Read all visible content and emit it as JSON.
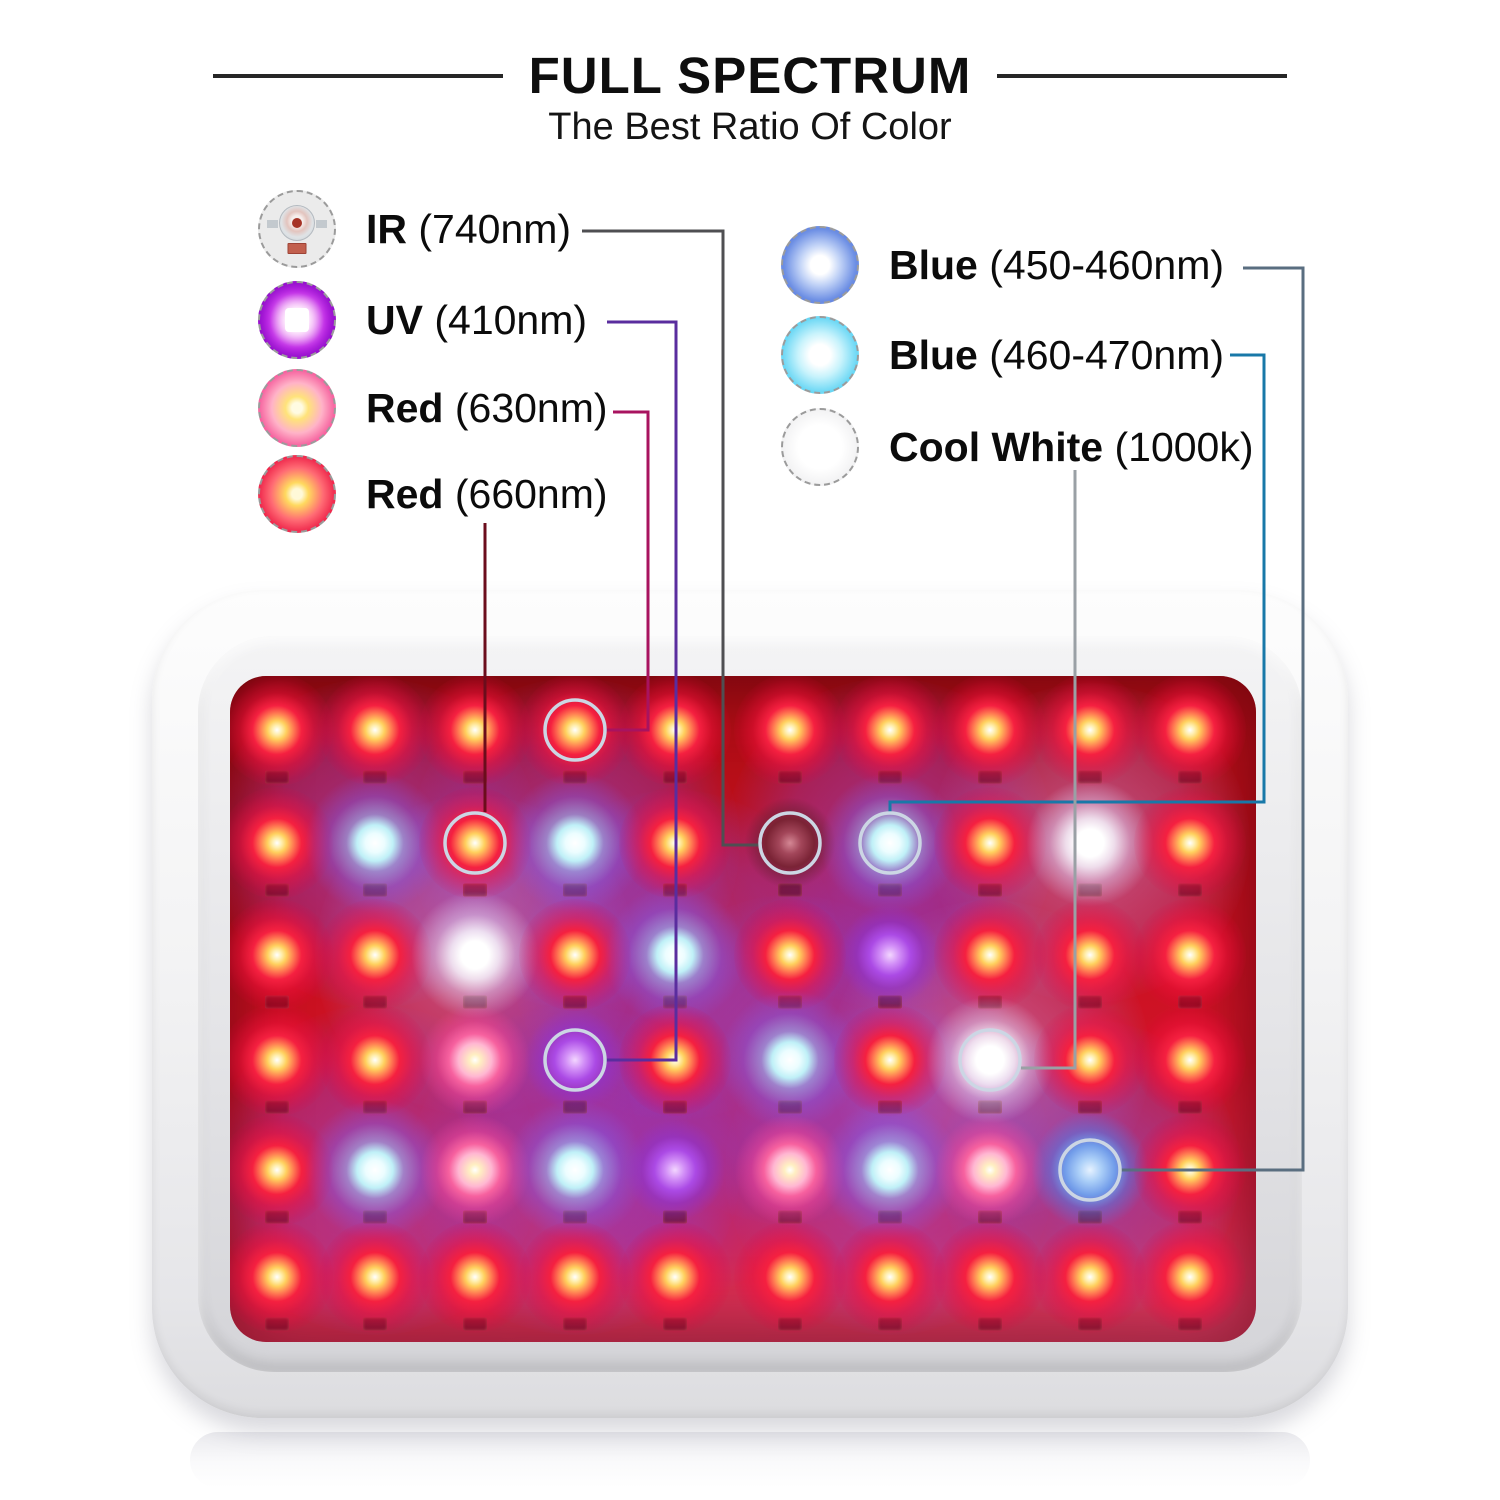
{
  "header": {
    "title": "FULL SPECTRUM",
    "subtitle": "The Best Ratio Of Color"
  },
  "legend_left": [
    {
      "id": "ir",
      "label": "IR",
      "wavelength": "(740nm)",
      "swatch": "ir-unlit-led",
      "line_color": "#4f4f52"
    },
    {
      "id": "uv",
      "label": "UV",
      "wavelength": "(410nm)",
      "swatch": "uv-purple-led",
      "line_color": "#5a2d9e"
    },
    {
      "id": "red630",
      "label": "Red",
      "wavelength": "(630nm)",
      "swatch": "red-630-led",
      "line_color": "#a8135f"
    },
    {
      "id": "red660",
      "label": "Red",
      "wavelength": "(660nm)",
      "swatch": "red-660-led",
      "line_color": "#6b0d1c"
    }
  ],
  "legend_right": [
    {
      "id": "blue450",
      "label": "Blue",
      "wavelength": "(450-460nm)",
      "swatch": "royal-blue-led",
      "line_color": "#5a6e80"
    },
    {
      "id": "blue470",
      "label": "Blue",
      "wavelength": "(460-470nm)",
      "swatch": "cyan-blue-led",
      "line_color": "#1878a8"
    },
    {
      "id": "coolwhite",
      "label": "Cool White",
      "wavelength": "(1000k)",
      "swatch": "cool-white-led",
      "line_color": "#9aa0a5"
    }
  ],
  "panel": {
    "rows": 6,
    "cols": 10,
    "led_types": {
      "R": "red",
      "C": "cyan-blue",
      "W": "cool-white",
      "P": "pink-red",
      "U": "uv-purple",
      "I": "ir-dark",
      "B": "royal-blue"
    },
    "grid": [
      [
        "R",
        "R",
        "R",
        "R",
        "R",
        "R",
        "R",
        "R",
        "R",
        "R"
      ],
      [
        "R",
        "C",
        "R",
        "C",
        "R",
        "I",
        "C",
        "R",
        "W",
        "R"
      ],
      [
        "R",
        "R",
        "W",
        "R",
        "C",
        "R",
        "U",
        "R",
        "R",
        "R"
      ],
      [
        "R",
        "R",
        "P",
        "U",
        "R",
        "C",
        "R",
        "W",
        "R",
        "R"
      ],
      [
        "R",
        "C",
        "P",
        "C",
        "U",
        "P",
        "C",
        "P",
        "B",
        "R"
      ],
      [
        "R",
        "R",
        "R",
        "R",
        "R",
        "R",
        "R",
        "R",
        "R",
        "R"
      ]
    ],
    "callouts": [
      {
        "legend": "red630",
        "row": 1,
        "col": 4
      },
      {
        "legend": "red660",
        "row": 2,
        "col": 3
      },
      {
        "legend": "ir",
        "row": 2,
        "col": 6
      },
      {
        "legend": "blue470",
        "row": 2,
        "col": 7
      },
      {
        "legend": "uv",
        "row": 4,
        "col": 4
      },
      {
        "legend": "coolwhite",
        "row": 4,
        "col": 8
      },
      {
        "legend": "blue450",
        "row": 5,
        "col": 9
      }
    ]
  },
  "colors": {
    "pcb_red": "#c81020",
    "frame_white": "#f4f4f5",
    "glow_purple": "#7c4fe0",
    "title_text": "#0e0e0e",
    "annotation_ring": "#ccd6e4"
  }
}
